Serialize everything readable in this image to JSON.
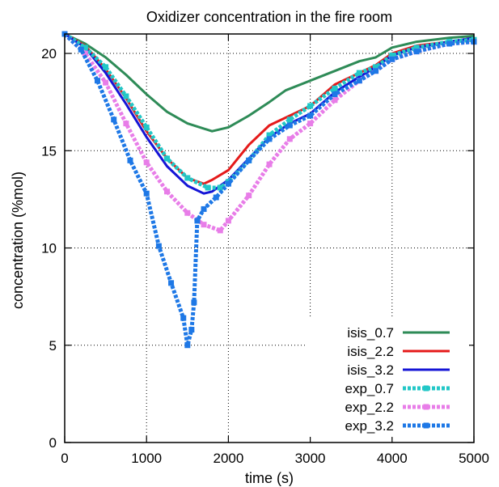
{
  "chart_data": {
    "type": "line",
    "title": "Oxidizer concentration in the fire room",
    "xlabel": "time (s)",
    "ylabel": "concentration (%mol)",
    "xlim": [
      0,
      5000
    ],
    "ylim": [
      0,
      21
    ],
    "x_ticks": [
      0,
      1000,
      2000,
      3000,
      4000,
      5000
    ],
    "y_ticks": [
      0,
      5,
      10,
      15,
      20
    ],
    "grid": true,
    "legend_position": "bottom-right",
    "series": [
      {
        "name": "isis_0.7",
        "color": "#2e8b57",
        "style": "solid",
        "x": [
          0,
          250,
          500,
          750,
          1000,
          1250,
          1500,
          1800,
          2000,
          2250,
          2500,
          2700,
          3000,
          3300,
          3600,
          3800,
          4000,
          4300,
          4700,
          5000
        ],
        "y": [
          21,
          20.5,
          19.8,
          18.9,
          17.9,
          17.0,
          16.4,
          16.0,
          16.2,
          16.8,
          17.5,
          18.1,
          18.6,
          19.1,
          19.6,
          19.8,
          20.3,
          20.6,
          20.8,
          20.9
        ]
      },
      {
        "name": "isis_2.2",
        "color": "#e51a1a",
        "style": "solid",
        "x": [
          0,
          250,
          500,
          750,
          1000,
          1250,
          1500,
          1700,
          1800,
          2000,
          2250,
          2500,
          2750,
          3000,
          3300,
          3600,
          3800,
          4000,
          4300,
          4700,
          5000
        ],
        "y": [
          21,
          20.4,
          19.2,
          17.7,
          16.0,
          14.6,
          13.6,
          13.3,
          13.5,
          14.0,
          15.3,
          16.3,
          16.8,
          17.3,
          18.4,
          19.0,
          19.4,
          20.0,
          20.4,
          20.6,
          20.8
        ]
      },
      {
        "name": "isis_3.2",
        "color": "#1515d6",
        "style": "solid",
        "x": [
          0,
          250,
          500,
          750,
          1000,
          1250,
          1500,
          1700,
          1800,
          2000,
          2250,
          2500,
          2750,
          3000,
          3300,
          3600,
          3800,
          4000,
          4300,
          4700,
          5000
        ],
        "y": [
          21,
          20.3,
          19.0,
          17.4,
          15.7,
          14.2,
          13.2,
          12.8,
          12.9,
          13.5,
          14.6,
          15.7,
          16.4,
          16.9,
          18.0,
          18.8,
          19.3,
          19.9,
          20.3,
          20.6,
          20.8
        ]
      },
      {
        "name": "exp_0.7",
        "color": "#22c7c7",
        "style": "dotted",
        "x": [
          0,
          250,
          500,
          750,
          1000,
          1250,
          1500,
          1750,
          1900,
          2000,
          2250,
          2500,
          2750,
          3000,
          3300,
          3600,
          3800,
          4000,
          4300,
          4700,
          5000
        ],
        "y": [
          21,
          20.3,
          19.3,
          17.8,
          16.2,
          14.6,
          13.6,
          13.1,
          13.1,
          13.4,
          14.5,
          15.8,
          16.6,
          17.3,
          18.2,
          19.0,
          19.3,
          19.9,
          20.3,
          20.6,
          20.7
        ]
      },
      {
        "name": "exp_2.2",
        "color": "#e87de8",
        "style": "dotted",
        "x": [
          0,
          250,
          500,
          750,
          1000,
          1250,
          1500,
          1700,
          1900,
          2000,
          2250,
          2500,
          2750,
          3000,
          3300,
          3600,
          3800,
          4000,
          4300,
          4700,
          5000
        ],
        "y": [
          21,
          20.0,
          18.5,
          16.4,
          14.4,
          12.9,
          11.8,
          11.2,
          10.9,
          11.4,
          12.7,
          14.3,
          15.6,
          16.4,
          17.6,
          18.6,
          19.1,
          19.7,
          20.1,
          20.5,
          20.6
        ]
      },
      {
        "name": "exp_3.2",
        "color": "#1e78e6",
        "style": "dotted",
        "x": [
          0,
          200,
          400,
          600,
          800,
          1000,
          1150,
          1300,
          1450,
          1500,
          1550,
          1580,
          1620,
          1700,
          1850,
          2000,
          2250,
          2500,
          2750,
          3000,
          3300,
          3600,
          3800,
          4000,
          4300,
          4700,
          5000
        ],
        "y": [
          21,
          20.2,
          18.6,
          16.6,
          14.5,
          12.8,
          10.1,
          8.2,
          6.4,
          5.0,
          5.8,
          7.2,
          11.4,
          12.0,
          12.6,
          13.3,
          14.5,
          15.6,
          16.3,
          16.8,
          17.9,
          18.6,
          19.1,
          19.7,
          20.1,
          20.5,
          20.6
        ]
      }
    ]
  }
}
